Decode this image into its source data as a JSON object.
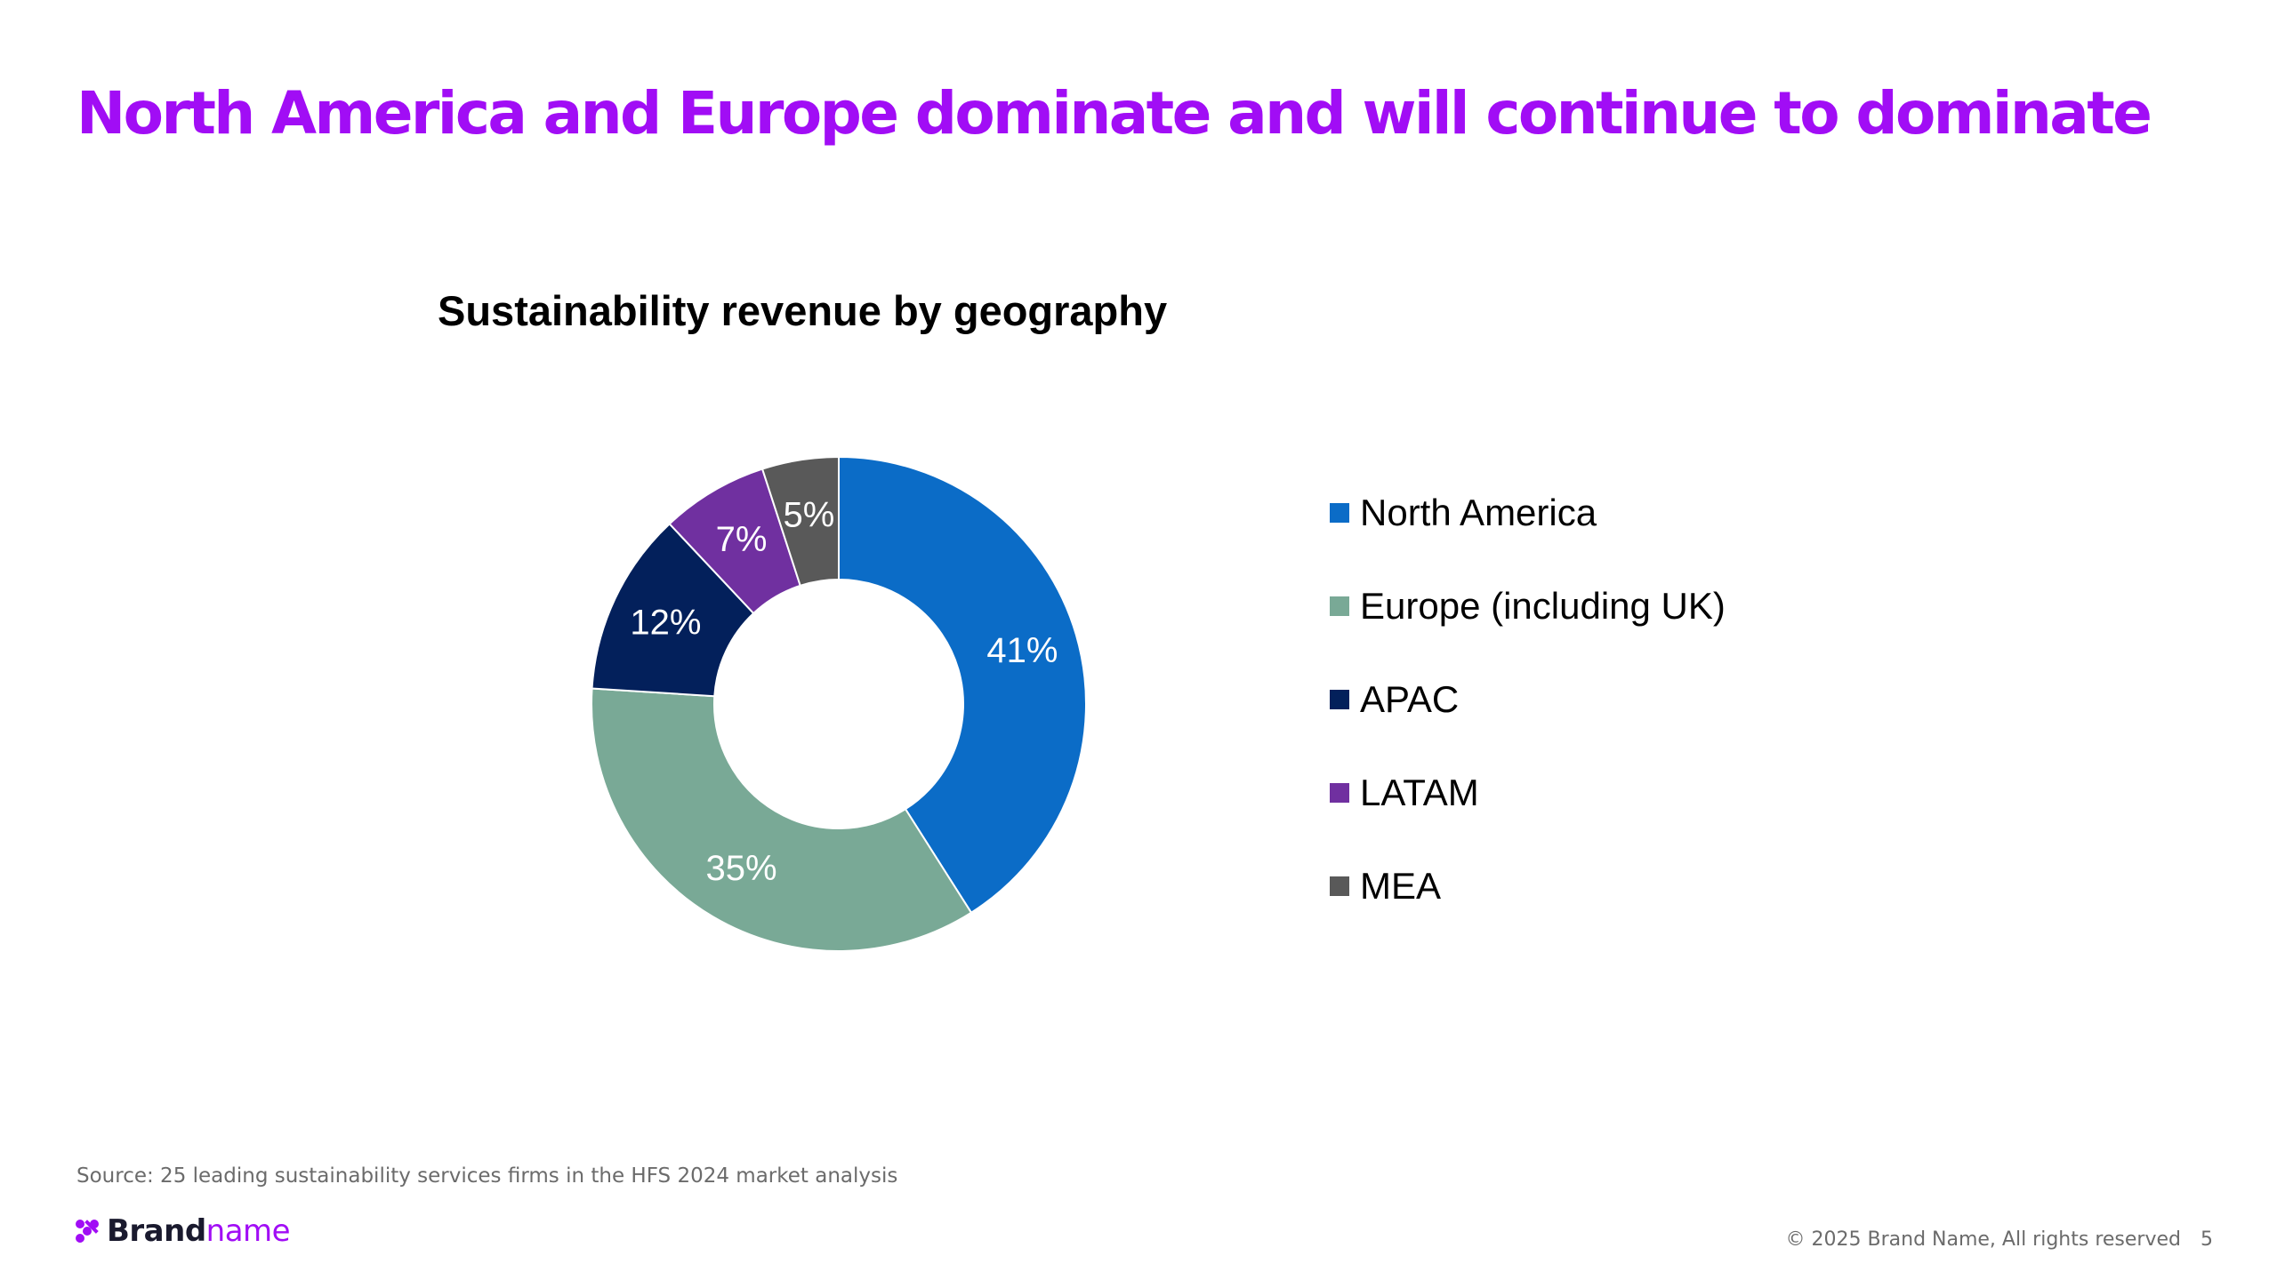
{
  "page": {
    "title": "North America and Europe dominate and will continue to dominate"
  },
  "chart_data": {
    "type": "pie",
    "title": "Sustainability revenue by geography",
    "categories": [
      "North America",
      "Europe (including UK)",
      "APAC",
      "LATAM",
      "MEA"
    ],
    "values": [
      41,
      35,
      12,
      7,
      5
    ],
    "data_labels": [
      "41%",
      "35%",
      "12%",
      "7%",
      "5%"
    ],
    "colors": [
      "#0b6cc7",
      "#79a996",
      "#03205b",
      "#7030a0",
      "#595959"
    ],
    "donut": true,
    "legend_placement": "right"
  },
  "footer": {
    "source": "Source: 25 leading sustainability services firms in the HFS 2024 market analysis",
    "logo_brand": "Brand",
    "logo_name": "name",
    "copyright": "© 2025 Brand Name, All rights reserved",
    "page_number": "5"
  },
  "colors": {
    "title": "#a10df5",
    "logo_accent": "#a10df5",
    "footer_text": "#6b6b6b"
  }
}
